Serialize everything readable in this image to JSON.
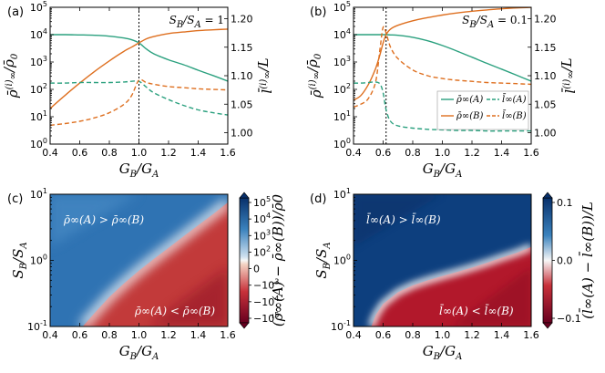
{
  "colors": {
    "A": "#2aa07e",
    "B": "#de6f1f",
    "red": "#b2182b",
    "blue": "#1f5fa6",
    "white": "#f7f7f7"
  },
  "chart_data": [
    {
      "type": "line",
      "panel": "(a)",
      "note": "S_B/S_A = 1",
      "xlabel": "G_B/G_A",
      "ylabel_left": "ρ̄∞(i)/ρ̄0",
      "ylabel_right": "l̄∞(i)/L",
      "xlim": [
        0.4,
        1.6
      ],
      "ylim_left": [
        1,
        100000
      ],
      "ylim_right": [
        0.98,
        1.22
      ],
      "xticks": [
        "0.4",
        "0.6",
        "0.8",
        "1.0",
        "1.2",
        "1.4",
        "1.6"
      ],
      "yticks_left": [
        "10^0",
        "10^1",
        "10^2",
        "10^3",
        "10^4",
        "10^5"
      ],
      "yticks_right": [
        "1.00",
        "1.05",
        "1.10",
        "1.15",
        "1.20"
      ],
      "vline": 1.0,
      "x": [
        0.4,
        0.5,
        0.6,
        0.7,
        0.8,
        0.9,
        0.95,
        1.0,
        1.05,
        1.1,
        1.2,
        1.3,
        1.4,
        1.5,
        1.6
      ],
      "series": [
        {
          "name": "ρ̄∞(A)",
          "axis": "left",
          "style": "solid",
          "color": "A",
          "values": [
            10000,
            10000,
            9800,
            9500,
            8800,
            7500,
            6500,
            5000,
            3000,
            2000,
            1200,
            800,
            500,
            320,
            200
          ]
        },
        {
          "name": "ρ̄∞(B)",
          "axis": "left",
          "style": "solid",
          "color": "B",
          "values": [
            20,
            60,
            170,
            450,
            1100,
            2500,
            3500,
            5000,
            7000,
            8500,
            11000,
            12500,
            14000,
            15000,
            16000
          ]
        },
        {
          "name": "l̄∞(A)",
          "axis": "right",
          "style": "dashed",
          "color": "A",
          "values": [
            1.087,
            1.087,
            1.088,
            1.088,
            1.088,
            1.089,
            1.09,
            1.09,
            1.08,
            1.07,
            1.058,
            1.048,
            1.04,
            1.035,
            1.031
          ]
        },
        {
          "name": "l̄∞(B)",
          "axis": "right",
          "style": "dashed",
          "color": "B",
          "values": [
            1.013,
            1.016,
            1.02,
            1.026,
            1.035,
            1.05,
            1.065,
            1.092,
            1.088,
            1.085,
            1.081,
            1.079,
            1.077,
            1.076,
            1.075
          ]
        }
      ]
    },
    {
      "type": "line",
      "panel": "(b)",
      "note": "S_B/S_A = 0.1",
      "xlabel": "G_B/G_A",
      "ylabel_left": "ρ̄∞(i)/ρ̄0",
      "ylabel_right": "l̄∞(i)/L",
      "xlim": [
        0.4,
        1.6
      ],
      "ylim_left": [
        1,
        100000
      ],
      "ylim_right": [
        0.98,
        1.22
      ],
      "xticks": [
        "0.4",
        "0.6",
        "0.8",
        "1.0",
        "1.2",
        "1.4",
        "1.6"
      ],
      "yticks_left": [
        "10^0",
        "10^1",
        "10^2",
        "10^3",
        "10^4",
        "10^5"
      ],
      "yticks_right": [
        "1.00",
        "1.05",
        "1.10",
        "1.15",
        "1.20"
      ],
      "vline": 0.62,
      "x": [
        0.4,
        0.45,
        0.5,
        0.55,
        0.58,
        0.6,
        0.62,
        0.65,
        0.7,
        0.8,
        0.9,
        1.0,
        1.1,
        1.2,
        1.3,
        1.4,
        1.5,
        1.6
      ],
      "series": [
        {
          "name": "ρ̄∞(A)",
          "axis": "left",
          "style": "solid",
          "color": "A",
          "values": [
            10000,
            10000,
            10000,
            10000,
            10000,
            10000,
            10000,
            9800,
            9500,
            8000,
            6000,
            4000,
            2500,
            1500,
            900,
            550,
            330,
            200
          ]
        },
        {
          "name": "ρ̄∞(B)",
          "axis": "left",
          "style": "solid",
          "color": "B",
          "values": [
            40,
            60,
            150,
            600,
            2000,
            5000,
            10000,
            16000,
            22000,
            32000,
            42000,
            52000,
            62000,
            72000,
            80000,
            88000,
            95000,
            100000
          ]
        },
        {
          "name": "l̄∞(A)",
          "axis": "right",
          "style": "dashed",
          "color": "A",
          "values": [
            1.087,
            1.087,
            1.088,
            1.089,
            1.085,
            1.07,
            1.04,
            1.02,
            1.012,
            1.008,
            1.006,
            1.005,
            1.004,
            1.004,
            1.003,
            1.003,
            1.003,
            1.003
          ]
        },
        {
          "name": "l̄∞(B)",
          "axis": "right",
          "style": "dashed",
          "color": "B",
          "values": [
            1.045,
            1.05,
            1.06,
            1.09,
            1.15,
            1.185,
            1.175,
            1.15,
            1.13,
            1.11,
            1.1,
            1.095,
            1.092,
            1.09,
            1.088,
            1.087,
            1.086,
            1.085
          ]
        }
      ],
      "legend": [
        {
          "label": "ρ̄∞(A)",
          "color": "A",
          "style": "solid"
        },
        {
          "label": "ρ̄∞(B)",
          "color": "B",
          "style": "solid"
        },
        {
          "label": "l̄∞(A)",
          "color": "A",
          "style": "dashed"
        },
        {
          "label": "l̄∞(B)",
          "color": "B",
          "style": "dashed"
        }
      ]
    },
    {
      "type": "heatmap",
      "panel": "(c)",
      "xlabel": "G_B/G_A",
      "ylabel": "S_B/S_A",
      "xlim": [
        0.4,
        1.6
      ],
      "ylim": [
        0.1,
        10
      ],
      "xticks": [
        "0.4",
        "0.6",
        "0.8",
        "1.0",
        "1.2",
        "1.4",
        "1.6"
      ],
      "yticks": [
        "10^-1",
        "10^0",
        "10^1"
      ],
      "boundary_x": [
        0.62,
        0.7,
        0.8,
        0.9,
        1.0,
        1.1,
        1.2,
        1.3,
        1.4,
        1.5,
        1.6
      ],
      "boundary_y": [
        0.1,
        0.16,
        0.28,
        0.45,
        0.7,
        1.05,
        1.55,
        2.3,
        3.4,
        5.0,
        7.5
      ],
      "colorbar_label": "(ρ̄∞(A) − ρ̄∞(B))/ρ̄0",
      "colorbar_ticks": [
        "10^5",
        "10^4",
        "10^3",
        "10^2",
        "0",
        "−10^3",
        "−10^4",
        "−10^5"
      ],
      "annotation_upper": "ρ̄∞(A) > ρ̄∞(B)",
      "annotation_lower": "ρ̄∞(A) < ρ̄∞(B)"
    },
    {
      "type": "heatmap",
      "panel": "(d)",
      "xlabel": "G_B/G_A",
      "ylabel": "S_B/S_A",
      "xlim": [
        0.4,
        1.6
      ],
      "ylim": [
        0.1,
        10
      ],
      "xticks": [
        "0.4",
        "0.6",
        "0.8",
        "1.0",
        "1.2",
        "1.4",
        "1.6"
      ],
      "yticks": [
        "10^-1",
        "10^0",
        "10^1"
      ],
      "boundary_x": [
        0.52,
        0.55,
        0.6,
        0.7,
        0.8,
        0.9,
        1.0,
        1.1,
        1.2,
        1.3,
        1.4,
        1.5,
        1.6
      ],
      "boundary_y": [
        0.1,
        0.15,
        0.22,
        0.33,
        0.42,
        0.5,
        0.58,
        0.67,
        0.78,
        0.92,
        1.1,
        1.3,
        1.6
      ],
      "colorbar_label": "(l̄∞(A) − l̄∞(B))/L",
      "colorbar_ticks": [
        "0.1",
        "0.0",
        "−0.1"
      ],
      "annotation_upper": "l̄∞(A) > l̄∞(B)",
      "annotation_lower": "l̄∞(A) < l̄∞(B)"
    }
  ]
}
